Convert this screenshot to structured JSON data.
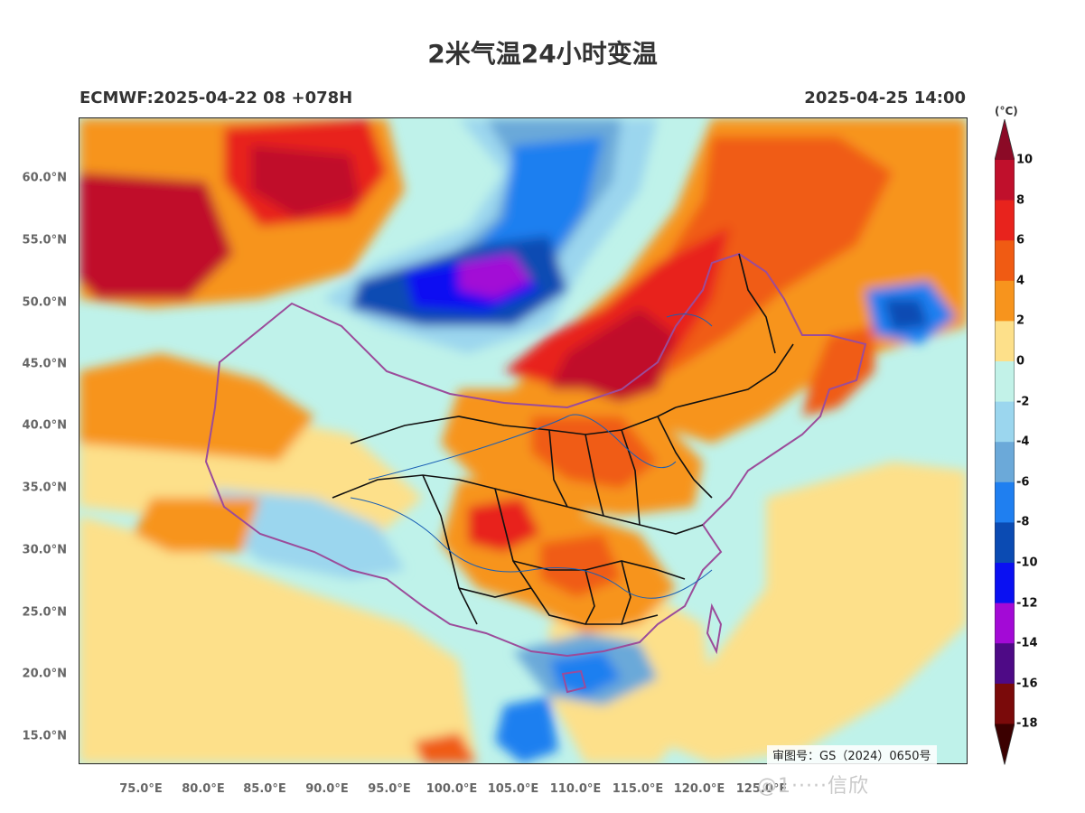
{
  "title": "2米气温24小时变温",
  "run_info": "ECMWF:2025-04-22 08 +078H",
  "valid_time": "2025-04-25 14:00",
  "credit": "审图号：GS（2024）0650号",
  "watermark": "@1·····信欣",
  "colorbar": {
    "unit": "(°C)",
    "labels": [
      "10",
      "8",
      "6",
      "4",
      "2",
      "0",
      "-2",
      "-4",
      "-6",
      "-8",
      "-10",
      "-12",
      "-14",
      "-16",
      "-18"
    ],
    "colors": [
      "#8b0a26",
      "#c0102c",
      "#e8231d",
      "#f05b13",
      "#f7941d",
      "#fde08a",
      "#c2f2e8",
      "#9bd6ee",
      "#6ba9d9",
      "#1f7ff0",
      "#0b4bb3",
      "#0a10f2",
      "#a30ad6",
      "#4e0a86",
      "#7a0a0a",
      "#3b0000"
    ]
  },
  "lat_labels": [
    "60.0°N",
    "55.0°N",
    "50.0°N",
    "45.0°N",
    "40.0°N",
    "35.0°N",
    "30.0°N",
    "25.0°N",
    "20.0°N",
    "15.0°N"
  ],
  "lon_labels": [
    "75.0°E",
    "80.0°E",
    "85.0°E",
    "90.0°E",
    "95.0°E",
    "100.0°E",
    "105.0°E",
    "110.0°E",
    "115.0°E",
    "120.0°E",
    "125.0°E"
  ]
}
